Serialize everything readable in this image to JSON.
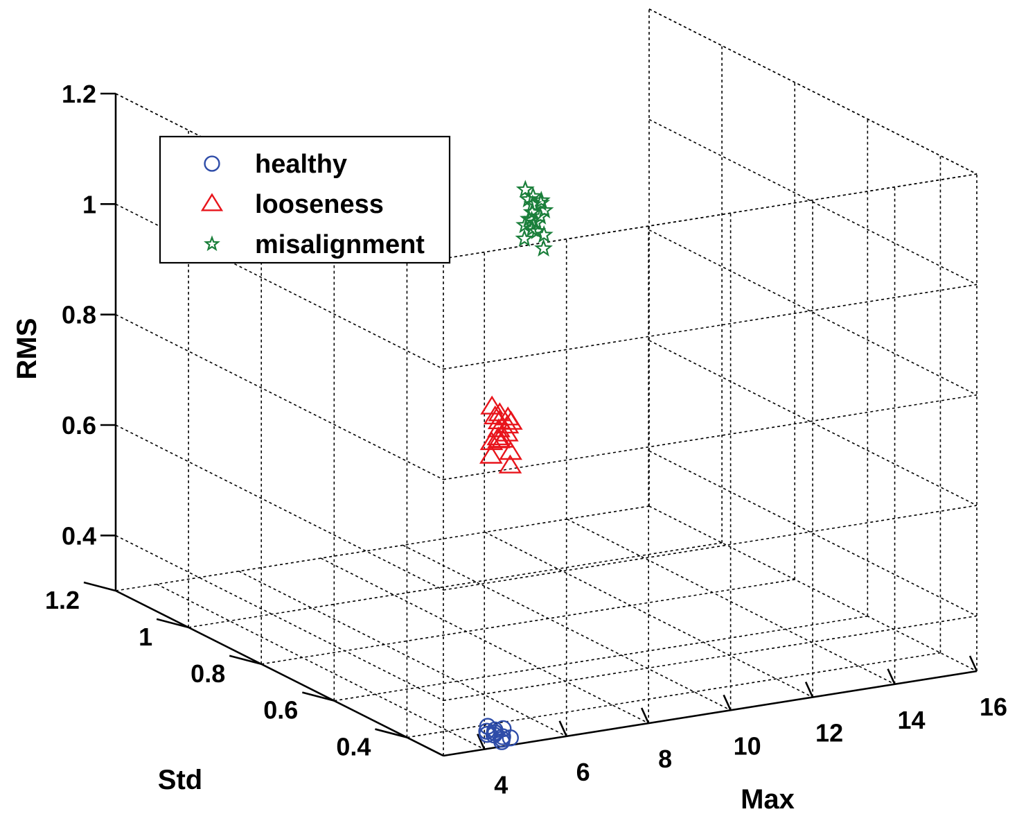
{
  "chart_data": {
    "type": "scatter",
    "dimensions": 3,
    "title": "",
    "xlabel": "Max",
    "ylabel": "Std",
    "zlabel": "RMS",
    "xlim": [
      3,
      16
    ],
    "ylim": [
      0.3,
      1.2
    ],
    "zlim": [
      0.3,
      1.2
    ],
    "xticks": [
      "4",
      "6",
      "8",
      "10",
      "12",
      "14",
      "16"
    ],
    "yticks": [
      "0.4",
      "0.6",
      "0.8",
      "1",
      "1.2"
    ],
    "zticks": [
      "0.4",
      "0.6",
      "0.8",
      "1",
      "1.2"
    ],
    "grid": true,
    "legend_position": "top-left",
    "series": [
      {
        "name": "healthy",
        "marker": "circle",
        "color": "#2E4CA8",
        "points": [
          [
            4.6,
            0.34,
            0.31
          ],
          [
            4.7,
            0.35,
            0.31
          ],
          [
            4.5,
            0.33,
            0.31
          ],
          [
            4.8,
            0.34,
            0.3
          ],
          [
            4.6,
            0.36,
            0.3
          ],
          [
            4.7,
            0.33,
            0.3
          ],
          [
            4.9,
            0.35,
            0.31
          ],
          [
            4.5,
            0.35,
            0.31
          ],
          [
            4.8,
            0.36,
            0.3
          ],
          [
            4.6,
            0.32,
            0.3
          ],
          [
            4.7,
            0.37,
            0.31
          ],
          [
            4.9,
            0.33,
            0.3
          ]
        ]
      },
      {
        "name": "looseness",
        "marker": "triangle",
        "color": "#E8141B",
        "points": [
          [
            7.9,
            0.7,
            0.7
          ],
          [
            8.0,
            0.71,
            0.71
          ],
          [
            8.1,
            0.72,
            0.72
          ],
          [
            7.8,
            0.69,
            0.69
          ],
          [
            8.0,
            0.7,
            0.68
          ],
          [
            8.2,
            0.71,
            0.7
          ],
          [
            7.9,
            0.72,
            0.67
          ],
          [
            8.1,
            0.69,
            0.66
          ],
          [
            8.0,
            0.73,
            0.73
          ],
          [
            7.8,
            0.71,
            0.65
          ],
          [
            8.2,
            0.7,
            0.71
          ],
          [
            8.0,
            0.68,
            0.64
          ],
          [
            7.9,
            0.71,
            0.72
          ],
          [
            8.1,
            0.7,
            0.69
          ],
          [
            8.3,
            0.72,
            0.71
          ],
          [
            7.9,
            0.7,
            0.68
          ]
        ]
      },
      {
        "name": "misalignment",
        "marker": "star",
        "color": "#1B7F3B",
        "points": [
          [
            9.6,
            0.8,
            1.04
          ],
          [
            9.7,
            0.81,
            1.05
          ],
          [
            9.8,
            0.82,
            1.06
          ],
          [
            9.5,
            0.79,
            1.03
          ],
          [
            9.7,
            0.8,
            1.02
          ],
          [
            9.9,
            0.81,
            1.05
          ],
          [
            9.6,
            0.82,
            1.01
          ],
          [
            9.8,
            0.79,
            1.0
          ],
          [
            9.7,
            0.83,
            1.07
          ],
          [
            9.5,
            0.81,
            0.99
          ],
          [
            9.9,
            0.8,
            1.04
          ],
          [
            9.7,
            0.78,
            0.98
          ],
          [
            9.6,
            0.81,
            1.06
          ],
          [
            9.8,
            0.8,
            1.03
          ],
          [
            10.0,
            0.82,
            1.05
          ],
          [
            9.6,
            0.8,
            1.01
          ],
          [
            9.7,
            0.82,
            1.02
          ],
          [
            9.8,
            0.81,
            1.0
          ]
        ]
      }
    ]
  }
}
